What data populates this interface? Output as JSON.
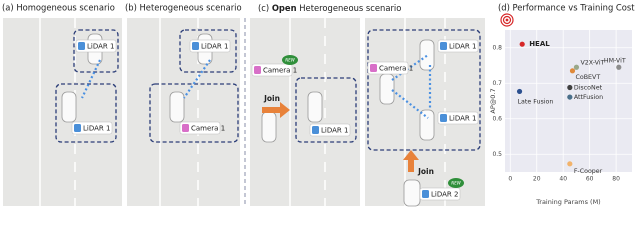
{
  "panels": {
    "a": {
      "title": "(a) Homogeneous scenario",
      "labels": [
        "LiDAR 1",
        "LiDAR 1"
      ]
    },
    "b": {
      "title": "(b) Heterogeneous scenario",
      "labels": [
        "LiDAR 1",
        "Camera 1"
      ]
    },
    "c": {
      "title_prefix": "(c) ",
      "title_bold": "Open",
      "title_rest": " Heterogeneous scenario",
      "labels": [
        "Camera 1",
        "LiDAR 1",
        "Camera 1",
        "LiDAR 1",
        "LiDAR 1",
        "LiDAR 2"
      ],
      "join": [
        "Join",
        "Join"
      ],
      "badges": [
        "NEW",
        "NEW"
      ]
    }
  },
  "chart_data": {
    "type": "scatter",
    "title": "(d) Performance vs Training Cost",
    "xlabel": "Training Params (M)",
    "ylabel": "AP@0.7",
    "xlim": [
      -4,
      92
    ],
    "ylim": [
      0.45,
      0.85
    ],
    "xticks": [
      0,
      20,
      40,
      60,
      80
    ],
    "yticks": [
      0.5,
      0.6,
      0.7,
      0.8
    ],
    "grid": true,
    "series": [
      {
        "name": "HEAL",
        "color": "#d62728",
        "x": [
          9
        ],
        "values": [
          0.81
        ]
      },
      {
        "name": "Late Fusion",
        "color": "#2b4f8f",
        "x": [
          7
        ],
        "values": [
          0.677
        ]
      },
      {
        "name": "V2X-ViT",
        "color": "#9aa88a",
        "x": [
          50
        ],
        "values": [
          0.745
        ]
      },
      {
        "name": "CoBEVT",
        "color": "#e08a3a",
        "x": [
          47
        ],
        "values": [
          0.735
        ]
      },
      {
        "name": "HM-ViT",
        "color": "#8c8c8c",
        "x": [
          82
        ],
        "values": [
          0.745
        ]
      },
      {
        "name": "DiscoNet",
        "color": "#404040",
        "x": [
          45
        ],
        "values": [
          0.688
        ]
      },
      {
        "name": "AttFusion",
        "color": "#4a6f8a",
        "x": [
          45
        ],
        "values": [
          0.661
        ]
      },
      {
        "name": "F-Cooper",
        "color": "#f2b36b",
        "x": [
          45
        ],
        "values": [
          0.473
        ]
      }
    ]
  }
}
